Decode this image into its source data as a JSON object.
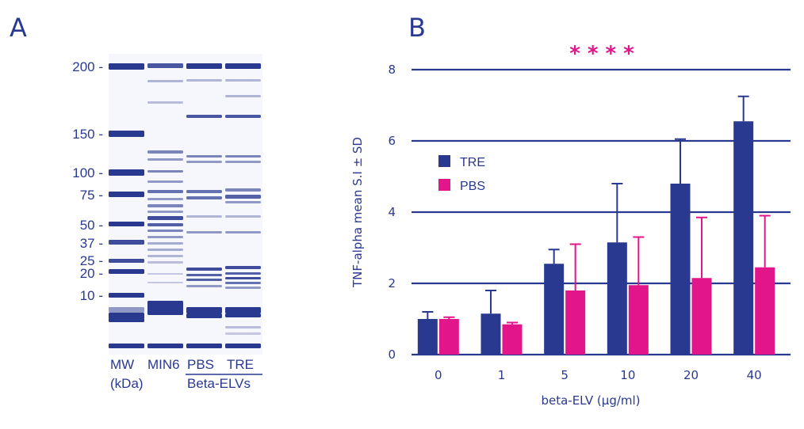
{
  "panel_a": {
    "letter": "A",
    "mw_labels": [
      "200 -",
      "150 -",
      "100 -",
      "75 -",
      "50 -",
      "37 -",
      "25 -",
      "20 -",
      "10 -"
    ],
    "mw_values": [
      200,
      150,
      100,
      75,
      50,
      37,
      25,
      20,
      10
    ],
    "lane_labels": [
      "MW",
      "MIN6",
      "PBS",
      "TRE"
    ],
    "unit_label": "(kDa)",
    "group_label": "Beta-ELVs",
    "band_color": "#2a3990"
  },
  "chart_data": {
    "type": "bar",
    "panel_letter": "B",
    "categories": [
      "0",
      "1",
      "5",
      "10",
      "20",
      "40"
    ],
    "series": [
      {
        "name": "TRE",
        "color": "#2a3990",
        "values": [
          1.0,
          1.15,
          2.55,
          3.15,
          4.8,
          6.55
        ],
        "sd": [
          0.2,
          0.65,
          0.4,
          1.65,
          1.25,
          0.7
        ]
      },
      {
        "name": "PBS",
        "color": "#e3158b",
        "values": [
          1.0,
          0.85,
          1.8,
          1.95,
          2.15,
          2.45
        ],
        "sd": [
          0.05,
          0.05,
          1.3,
          1.35,
          1.7,
          1.45
        ]
      }
    ],
    "xlabel": "beta-ELV (µg/ml)",
    "ylabel": "TNF-alpha mean S.I ± SD",
    "ylim": [
      0,
      8
    ],
    "yticks": [
      "0",
      "2",
      "4",
      "6",
      "8"
    ],
    "grid": true,
    "legend": "top-left",
    "annotation": "* * * *"
  }
}
